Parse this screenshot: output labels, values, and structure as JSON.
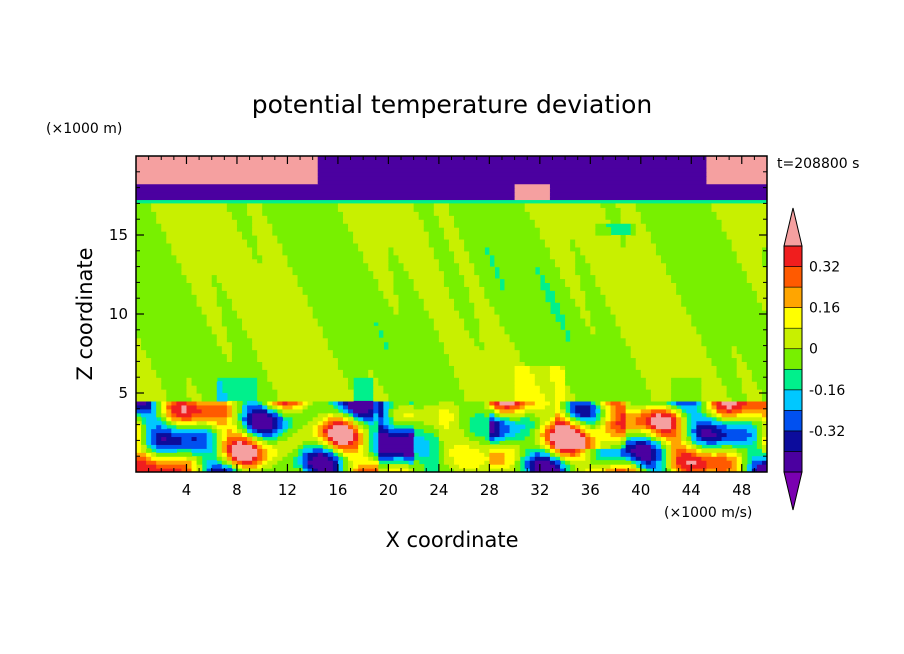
{
  "chart_data": {
    "type": "heatmap",
    "title": "potential temperature deviation",
    "time_label": "t=208800 s",
    "xlabel": "X coordinate",
    "ylabel": "Z coordinate",
    "x_unit": "(×1000 m/s)",
    "y_unit": "(×1000 m)",
    "xlim": [
      0,
      50
    ],
    "ylim": [
      0,
      20
    ],
    "x_ticks": [
      4,
      8,
      12,
      16,
      20,
      24,
      28,
      32,
      36,
      40,
      44,
      48
    ],
    "y_ticks": [
      5,
      10,
      15
    ],
    "colorbar": {
      "levels": [
        -0.48,
        -0.4,
        -0.32,
        -0.24,
        -0.16,
        -0.08,
        0,
        0.08,
        0.16,
        0.24,
        0.32,
        0.4
      ],
      "colors": [
        "#7a00b0",
        "#4b00a0",
        "#0c0c9c",
        "#0050f0",
        "#00c8ff",
        "#00f08c",
        "#78f000",
        "#c8f000",
        "#ffff00",
        "#ffa500",
        "#ff5a00",
        "#f01e1e",
        "#f5a0a0"
      ],
      "tick_labels": [
        "-0.32",
        "-0.16",
        "0",
        "0.16",
        "0.32"
      ],
      "tick_values": [
        -0.32,
        -0.16,
        0,
        0.16,
        0.32
      ],
      "extend": "both"
    }
  }
}
